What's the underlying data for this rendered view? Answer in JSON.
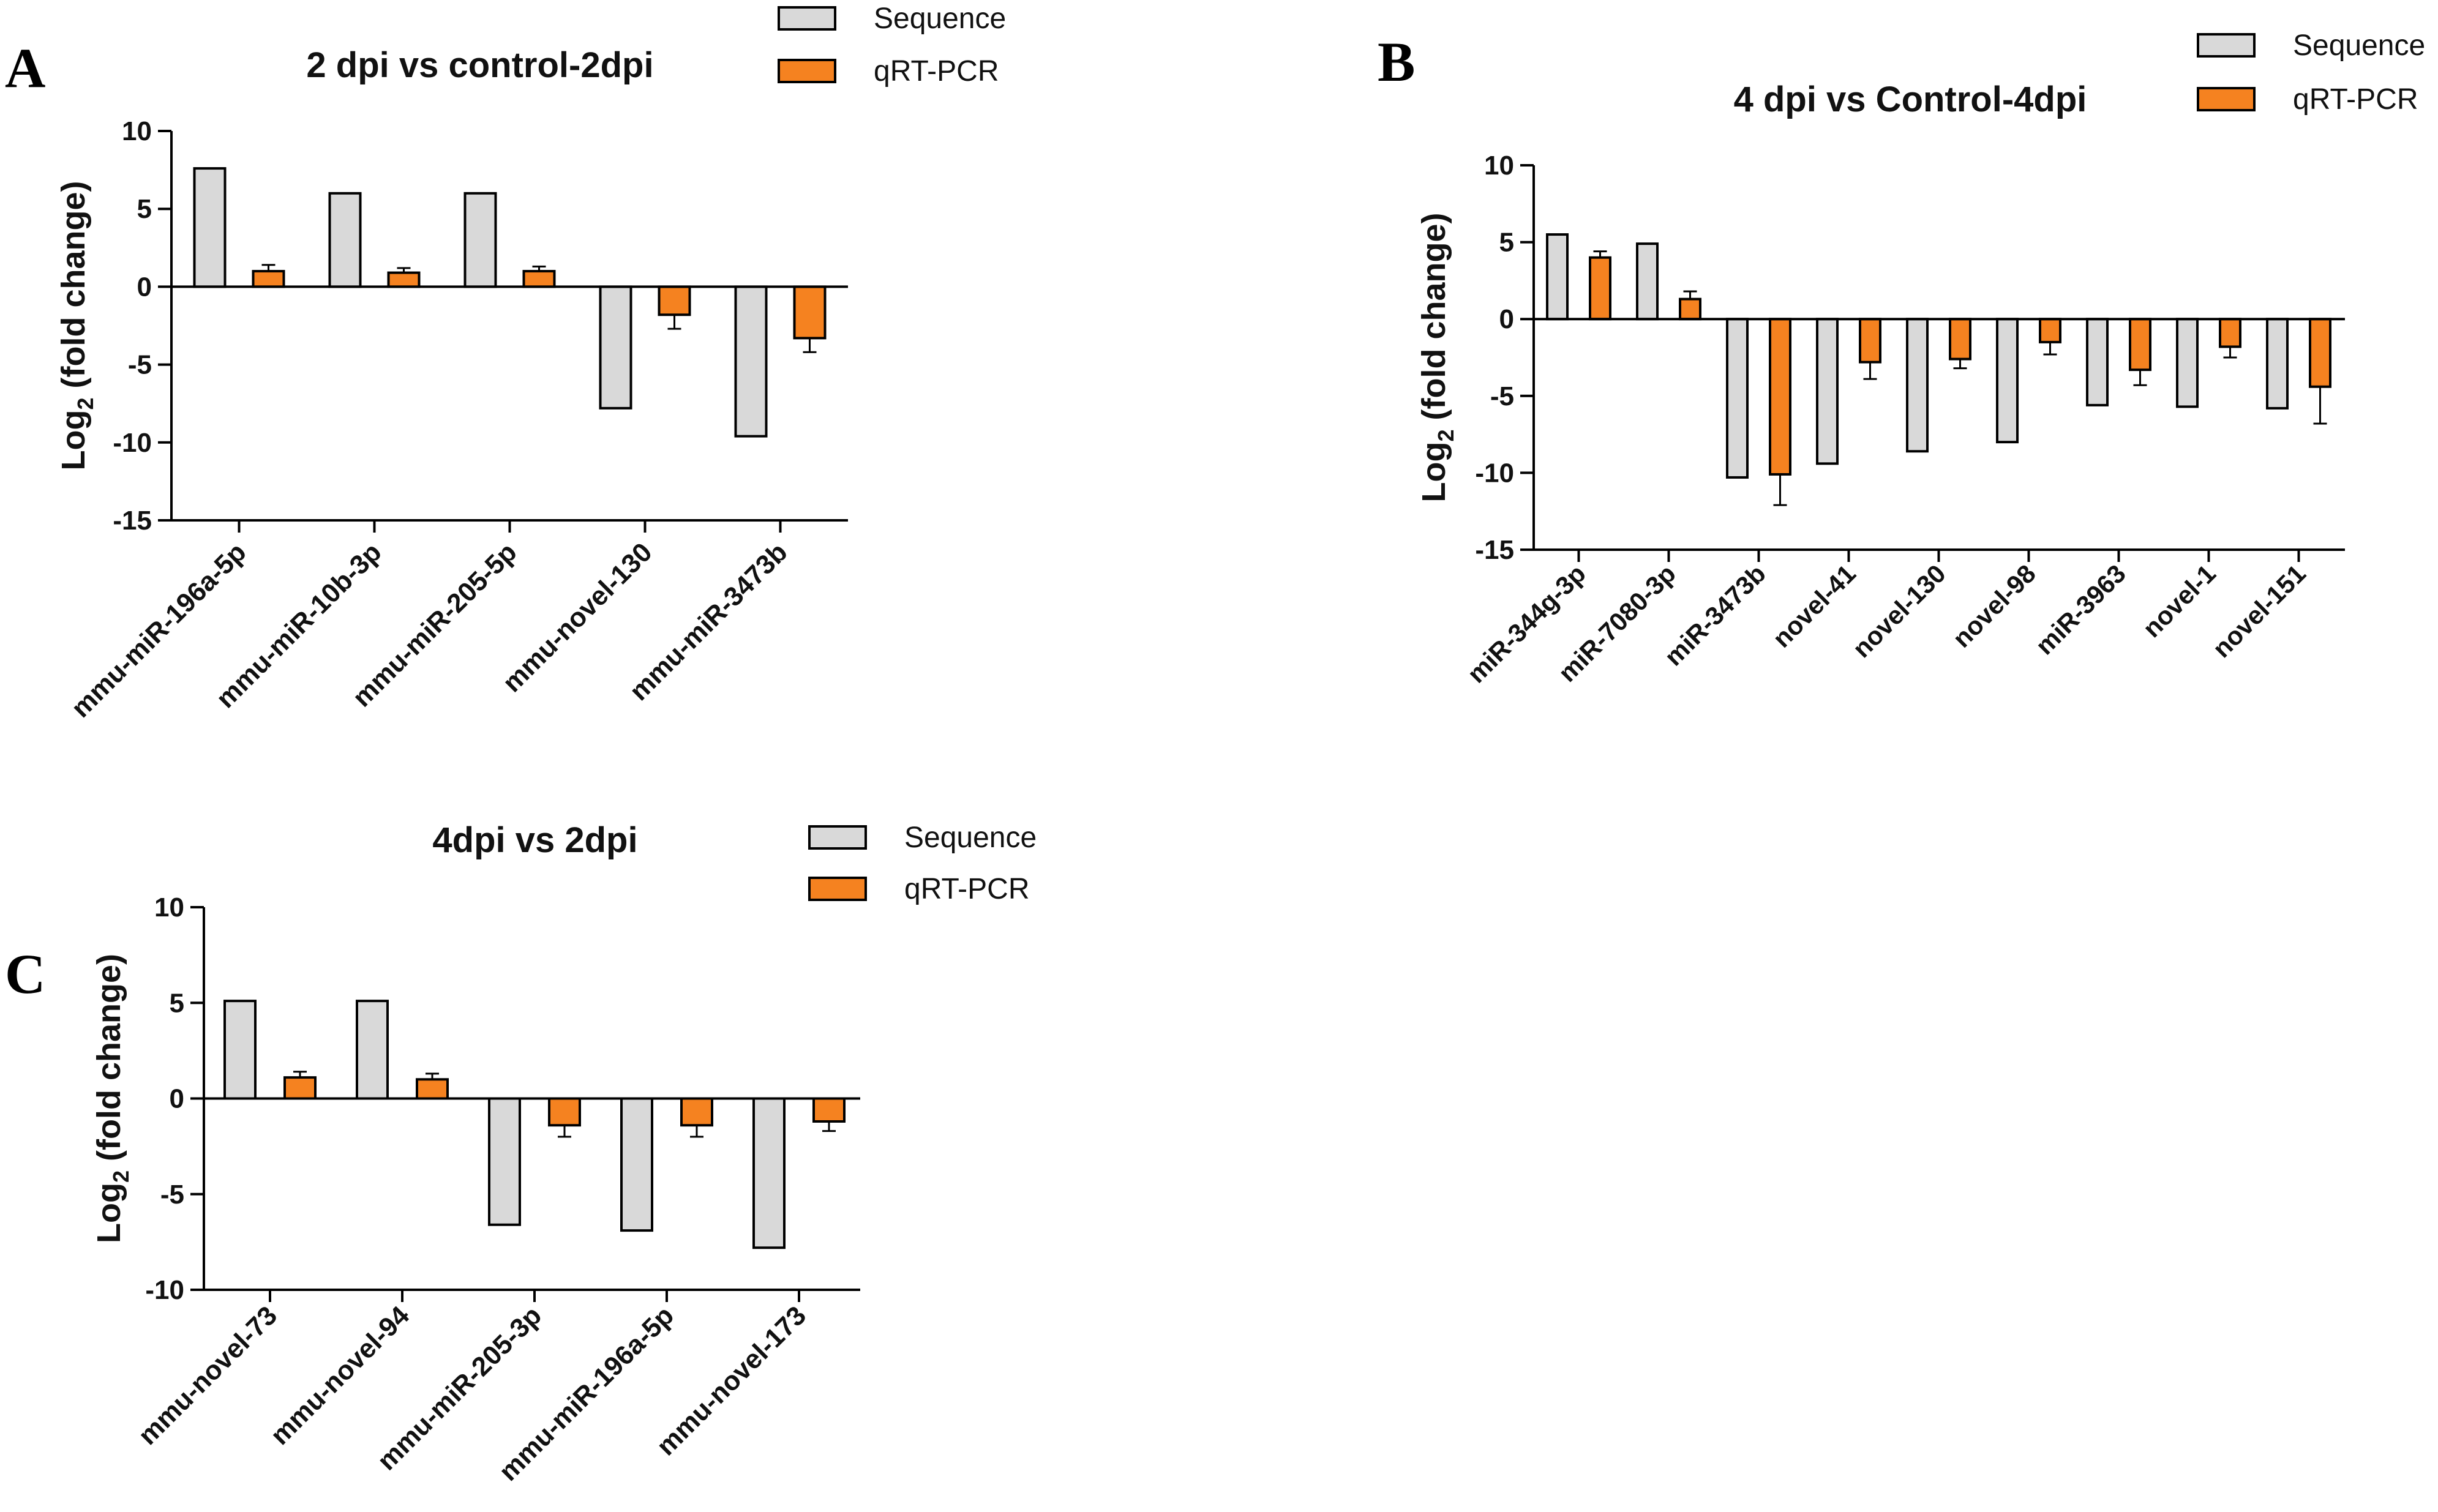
{
  "colors": {
    "sequence": "#d9d9d9",
    "qrtpcr": "#f58220",
    "axis": "#000000"
  },
  "chart_data": [
    {
      "panel": "A",
      "type": "bar",
      "title": "2 dpi vs control-2dpi",
      "ylabel_main": "Log",
      "ylabel_sub": "2",
      "ylabel_rest": " (fold change)",
      "ylim": [
        -15,
        10
      ],
      "yticks": [
        10,
        5,
        0,
        -5,
        -10,
        -15
      ],
      "legend": [
        "Sequence",
        "qRT-PCR"
      ],
      "categories": [
        "mmu-miR-196a-5p",
        "mmu-miR-10b-3p",
        "mmu-miR-205-5p",
        "mmu-novel-130",
        "mmu-miR-3473b"
      ],
      "series": [
        {
          "name": "Sequence",
          "values": [
            7.6,
            6.0,
            6.0,
            -7.8,
            -9.6
          ],
          "errors": [
            0,
            0,
            0,
            0,
            0
          ]
        },
        {
          "name": "qRT-PCR",
          "values": [
            1.0,
            0.9,
            1.0,
            -1.8,
            -3.3
          ],
          "errors": [
            0.4,
            0.3,
            0.3,
            0.9,
            0.9
          ]
        }
      ]
    },
    {
      "panel": "B",
      "type": "bar",
      "title": "4 dpi vs Control-4dpi",
      "ylabel_main": "Log",
      "ylabel_sub": "2",
      "ylabel_rest": " (fold change)",
      "ylim": [
        -15,
        10
      ],
      "yticks": [
        10,
        5,
        0,
        -5,
        -10,
        -15
      ],
      "legend": [
        "Sequence",
        "qRT-PCR"
      ],
      "categories": [
        "miR-344g-3p",
        "miR-7080-3p",
        "miR-3473b",
        "novel-41",
        "novel-130",
        "novel-98",
        "miR-3963",
        "novel-1",
        "novel-151"
      ],
      "series": [
        {
          "name": "Sequence",
          "values": [
            5.5,
            4.9,
            -10.3,
            -9.4,
            -8.6,
            -8.0,
            -5.6,
            -5.7,
            -5.8
          ],
          "errors": [
            0,
            0,
            0,
            0,
            0,
            0,
            0,
            0,
            0
          ]
        },
        {
          "name": "qRT-PCR",
          "values": [
            4.0,
            1.3,
            -10.1,
            -2.8,
            -2.6,
            -1.5,
            -3.3,
            -1.8,
            -4.4
          ],
          "errors": [
            0.4,
            0.5,
            2.0,
            1.1,
            0.6,
            0.8,
            1.0,
            0.7,
            2.4
          ]
        }
      ]
    },
    {
      "panel": "C",
      "type": "bar",
      "title": "4dpi vs 2dpi",
      "ylabel_main": "Log",
      "ylabel_sub": "2",
      "ylabel_rest": " (fold change)",
      "ylim": [
        -10,
        10
      ],
      "yticks": [
        10,
        5,
        0,
        -5,
        -10
      ],
      "legend": [
        "Sequence",
        "qRT-PCR"
      ],
      "categories": [
        "mmu-novel-73",
        "mmu-novel-94",
        "mmu-miR-205-3p",
        "mmu-miR-196a-5p",
        "mmu-novel-173"
      ],
      "series": [
        {
          "name": "Sequence",
          "values": [
            5.1,
            5.1,
            -6.6,
            -6.9,
            -7.8
          ],
          "errors": [
            0,
            0,
            0,
            0,
            0
          ]
        },
        {
          "name": "qRT-PCR",
          "values": [
            1.1,
            1.0,
            -1.4,
            -1.4,
            -1.2
          ],
          "errors": [
            0.3,
            0.3,
            0.6,
            0.6,
            0.5
          ]
        }
      ]
    }
  ]
}
